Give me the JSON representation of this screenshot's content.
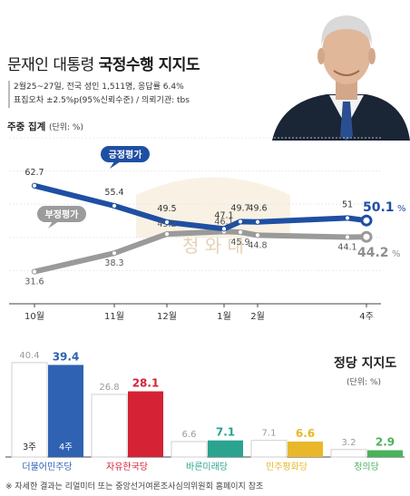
{
  "header": {
    "title_prefix": "문재인 대통령",
    "title_main": "국정수행 지지도",
    "info_line1": "2월25~27일, 전국 성인 1,511명, 응답률 6.4%",
    "info_line2": "표집오차 ±2.5%p(95%신뢰수준) / 의뢰기관: tbs"
  },
  "line_section": {
    "subtitle": "주중 집계",
    "unit": "(단위: %)"
  },
  "party_section": {
    "title": "정당 지지도",
    "unit": "(단위: %)"
  },
  "footnote": "※ 자세한 결과는 리얼미터 또는 중앙선거여론조사심의위원회 홈페이지 참조",
  "watermark": "청 와 대",
  "colors": {
    "approve": "#1f4fa3",
    "disapprove": "#9a9a9a",
    "bg_band": "#f7ecd8",
    "week3_bar": "#ffffff",
    "week4_bar_dem": "#2f62b3",
    "week4_bar_lkp": "#d52234",
    "week4_bar_bm": "#2aa38f",
    "week4_bar_pd": "#e8b82a",
    "week4_bar_jp": "#49b35a"
  },
  "chart_data": [
    {
      "type": "line",
      "title": "문재인 대통령 국정수행 지지도",
      "x_ticks": [
        "10월",
        "11월",
        "12월",
        "1월",
        "2월",
        "4주"
      ],
      "series": [
        {
          "name": "긍정평가",
          "values": [
            62.7,
            55.4,
            49.5,
            47.1,
            49.7,
            49.6,
            51,
            50.1
          ]
        },
        {
          "name": "부정평가",
          "values": [
            31.6,
            38.3,
            45.2,
            46.1,
            45.9,
            44.8,
            44.1,
            44.2
          ]
        }
      ],
      "last_labels": {
        "approve": "50.1",
        "disapprove": "44.2",
        "percent": "%"
      },
      "ylim": [
        20,
        80
      ]
    },
    {
      "type": "bar",
      "title": "정당 지지도",
      "categories": [
        "더불어민주당",
        "자유한국당",
        "바른미래당",
        "민주평화당",
        "정의당"
      ],
      "series": [
        {
          "name": "3주",
          "values": [
            40.4,
            26.8,
            6.6,
            7.1,
            3.2
          ]
        },
        {
          "name": "4주",
          "values": [
            39.4,
            28.1,
            7.1,
            6.6,
            2.9
          ]
        }
      ],
      "ylim": [
        0,
        45
      ]
    }
  ]
}
